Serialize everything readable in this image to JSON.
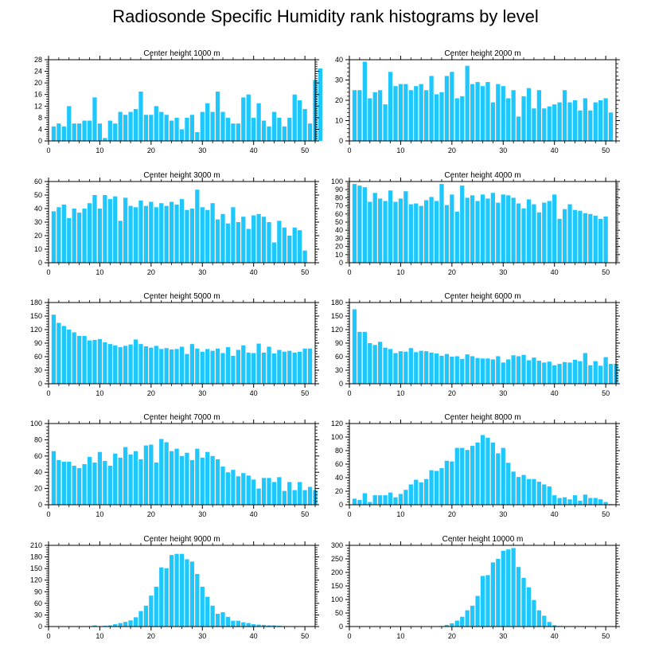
{
  "title": "Radiosonde Specific Humidity rank histograms by level",
  "colors": {
    "bar": "#1ec8ff",
    "axis": "#000000"
  },
  "chart_data": [
    {
      "type": "bar",
      "title": "Center height 1000 m",
      "xlim": [
        0,
        52
      ],
      "xticks": [
        0,
        10,
        20,
        30,
        40,
        50
      ],
      "ylim": [
        0,
        28
      ],
      "yticks": [
        0,
        4,
        8,
        12,
        16,
        20,
        24,
        28
      ],
      "values": [
        5,
        6,
        5,
        12,
        6,
        6,
        7,
        7,
        15,
        6,
        1,
        7,
        6,
        10,
        9,
        10,
        11,
        17,
        9,
        9,
        12,
        10,
        9,
        7,
        8,
        4,
        8,
        9,
        3,
        10,
        13,
        10,
        17,
        10,
        8,
        6,
        6,
        15,
        16,
        8,
        13,
        7,
        5,
        10,
        8,
        5,
        8,
        16,
        14,
        11,
        6,
        21,
        25
      ]
    },
    {
      "type": "bar",
      "title": "Center height 2000 m",
      "xlim": [
        0,
        52
      ],
      "xticks": [
        0,
        10,
        20,
        30,
        40,
        50
      ],
      "ylim": [
        0,
        40
      ],
      "yticks": [
        0,
        10,
        20,
        30,
        40
      ],
      "values": [
        25,
        25,
        39,
        21,
        24,
        25,
        18,
        34,
        27,
        28,
        28,
        25,
        27,
        28,
        25,
        32,
        23,
        24,
        32,
        34,
        21,
        22,
        37,
        28,
        29,
        27,
        29,
        19,
        28,
        27,
        21,
        25,
        12,
        22,
        26,
        16,
        25,
        16,
        17,
        18,
        19,
        25,
        19,
        20,
        15,
        21,
        15,
        19,
        20,
        21,
        14
      ]
    },
    {
      "type": "bar",
      "title": "Center height 3000 m",
      "xlim": [
        0,
        52
      ],
      "xticks": [
        0,
        10,
        20,
        30,
        40,
        50
      ],
      "ylim": [
        0,
        60
      ],
      "yticks": [
        0,
        10,
        20,
        30,
        40,
        50,
        60
      ],
      "values": [
        38,
        41,
        43,
        33,
        40,
        37,
        40,
        44,
        50,
        40,
        50,
        47,
        49,
        31,
        48,
        42,
        41,
        46,
        42,
        45,
        41,
        44,
        42,
        45,
        43,
        47,
        39,
        40,
        54,
        41,
        39,
        44,
        32,
        36,
        29,
        41,
        30,
        34,
        25,
        35,
        36,
        34,
        30,
        15,
        31,
        26,
        20,
        26,
        24,
        9
      ]
    },
    {
      "type": "bar",
      "title": "Center height 4000 m",
      "xlim": [
        0,
        52
      ],
      "xticks": [
        0,
        10,
        20,
        30,
        40,
        50
      ],
      "ylim": [
        0,
        100
      ],
      "yticks": [
        0,
        10,
        20,
        30,
        40,
        50,
        60,
        70,
        80,
        90,
        100
      ],
      "values": [
        97,
        95,
        93,
        75,
        86,
        79,
        76,
        89,
        75,
        79,
        88,
        72,
        73,
        70,
        77,
        81,
        76,
        97,
        71,
        84,
        63,
        95,
        80,
        83,
        76,
        84,
        79,
        86,
        74,
        84,
        83,
        80,
        73,
        67,
        78,
        72,
        62,
        74,
        76,
        84,
        54,
        66,
        72,
        65,
        64,
        61,
        60,
        58,
        54,
        57
      ]
    },
    {
      "type": "bar",
      "title": "Center height 5000 m",
      "xlim": [
        0,
        52
      ],
      "xticks": [
        0,
        10,
        20,
        30,
        40,
        50
      ],
      "ylim": [
        0,
        180
      ],
      "yticks": [
        0,
        30,
        60,
        90,
        120,
        150,
        180
      ],
      "values": [
        153,
        135,
        128,
        120,
        114,
        106,
        106,
        96,
        97,
        99,
        92,
        88,
        85,
        81,
        84,
        87,
        98,
        88,
        83,
        80,
        84,
        77,
        79,
        76,
        77,
        82,
        66,
        88,
        78,
        71,
        77,
        73,
        78,
        68,
        81,
        62,
        75,
        85,
        69,
        68,
        89,
        69,
        82,
        67,
        75,
        71,
        73,
        69,
        71,
        78,
        78
      ]
    },
    {
      "type": "bar",
      "title": "Center height 6000 m",
      "xlim": [
        0,
        52
      ],
      "xticks": [
        0,
        10,
        20,
        30,
        40,
        50
      ],
      "ylim": [
        0,
        180
      ],
      "yticks": [
        0,
        30,
        60,
        90,
        120,
        150,
        180
      ],
      "values": [
        165,
        115,
        115,
        90,
        86,
        93,
        80,
        77,
        68,
        72,
        71,
        79,
        70,
        73,
        72,
        69,
        67,
        62,
        66,
        60,
        61,
        55,
        65,
        61,
        57,
        56,
        56,
        54,
        61,
        47,
        54,
        63,
        61,
        64,
        52,
        58,
        51,
        47,
        49,
        41,
        44,
        48,
        47,
        53,
        50,
        68,
        41,
        50,
        40,
        59,
        44,
        44
      ]
    },
    {
      "type": "bar",
      "title": "Center height 7000 m",
      "xlim": [
        0,
        52
      ],
      "xticks": [
        0,
        10,
        20,
        30,
        40,
        50
      ],
      "ylim": [
        0,
        100
      ],
      "yticks": [
        0,
        20,
        40,
        60,
        80,
        100
      ],
      "values": [
        66,
        55,
        53,
        53,
        48,
        45,
        50,
        59,
        52,
        65,
        54,
        48,
        63,
        58,
        71,
        62,
        66,
        56,
        73,
        74,
        52,
        81,
        77,
        66,
        69,
        60,
        64,
        55,
        69,
        58,
        65,
        60,
        56,
        47,
        40,
        43,
        35,
        39,
        36,
        31,
        20,
        33,
        33,
        28,
        34,
        17,
        28,
        18,
        28,
        18,
        22,
        18
      ]
    },
    {
      "type": "bar",
      "title": "Center height 8000 m",
      "xlim": [
        0,
        52
      ],
      "xticks": [
        0,
        10,
        20,
        30,
        40,
        50
      ],
      "ylim": [
        0,
        120
      ],
      "yticks": [
        0,
        20,
        40,
        60,
        80,
        100,
        120
      ],
      "values": [
        9,
        7,
        17,
        4,
        14,
        14,
        14,
        18,
        11,
        16,
        22,
        30,
        37,
        33,
        38,
        51,
        50,
        54,
        65,
        64,
        84,
        84,
        81,
        87,
        92,
        103,
        99,
        92,
        76,
        84,
        62,
        49,
        41,
        44,
        38,
        38,
        34,
        30,
        27,
        14,
        10,
        11,
        8,
        14,
        6,
        15,
        10,
        10,
        8,
        4,
        1
      ]
    },
    {
      "type": "bar",
      "title": "Center height 9000 m",
      "xlim": [
        0,
        52
      ],
      "xticks": [
        0,
        10,
        20,
        30,
        40,
        50
      ],
      "ylim": [
        0,
        210
      ],
      "yticks": [
        0,
        30,
        60,
        90,
        120,
        150,
        180,
        210
      ],
      "values": [
        0,
        0,
        0,
        0,
        0,
        0,
        0,
        1,
        3,
        1,
        2,
        3,
        6,
        9,
        12,
        16,
        24,
        40,
        54,
        80,
        103,
        153,
        151,
        185,
        188,
        188,
        174,
        168,
        136,
        103,
        77,
        54,
        33,
        37,
        25,
        15,
        15,
        11,
        9,
        6,
        5,
        4,
        3,
        3,
        2,
        1,
        1,
        1,
        0,
        0,
        0,
        0
      ]
    },
    {
      "type": "bar",
      "title": "Center height 10000 m",
      "xlim": [
        0,
        52
      ],
      "xticks": [
        0,
        10,
        20,
        30,
        40,
        50
      ],
      "ylim": [
        0,
        300
      ],
      "yticks": [
        0,
        50,
        100,
        150,
        200,
        250,
        300
      ],
      "values": [
        0,
        0,
        0,
        0,
        0,
        0,
        0,
        0,
        0,
        0,
        0,
        0,
        0,
        0,
        0,
        0,
        0,
        2,
        6,
        12,
        22,
        36,
        60,
        77,
        113,
        187,
        190,
        237,
        250,
        280,
        285,
        290,
        220,
        180,
        145,
        98,
        60,
        40,
        17,
        5,
        2,
        1,
        1,
        1,
        0,
        0,
        0,
        0,
        0,
        0,
        0,
        0
      ]
    }
  ]
}
